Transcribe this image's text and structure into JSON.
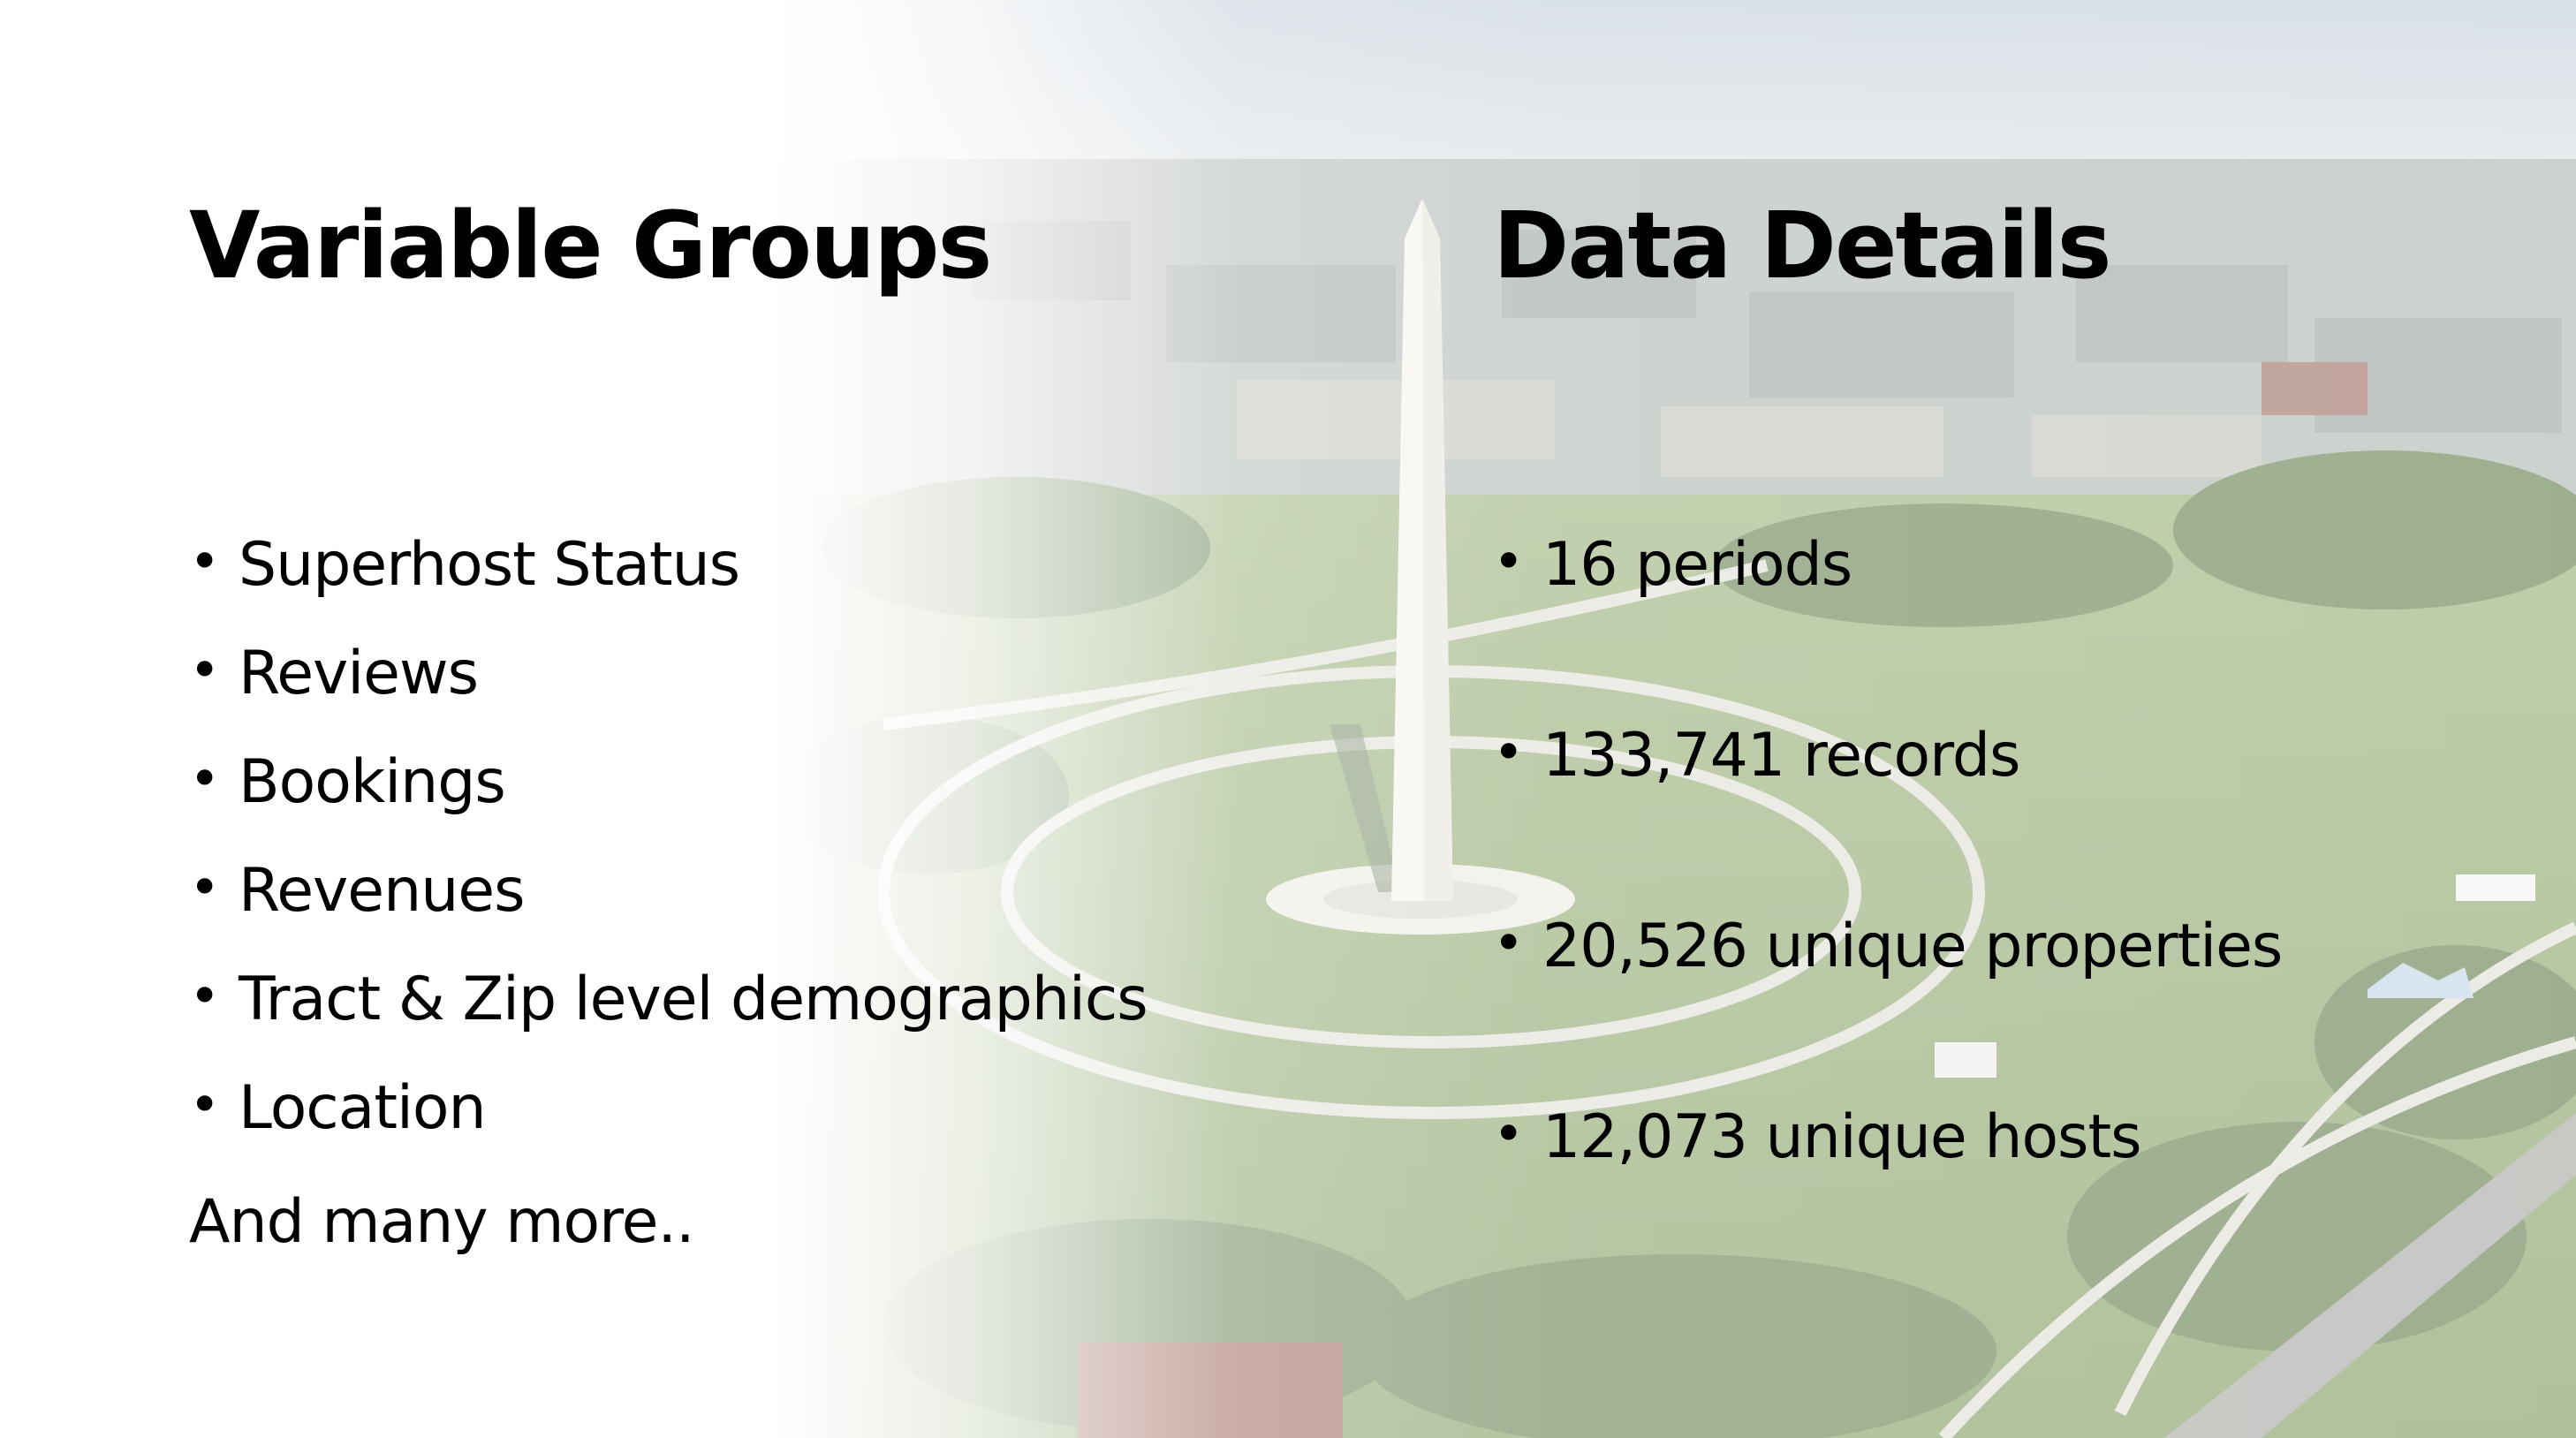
{
  "left_column": {
    "title": "Variable Groups",
    "items": [
      "Superhost Status",
      "Reviews",
      "Bookings",
      "Revenues",
      "Tract & Zip level demographics",
      "Location"
    ],
    "trailer": "And many more.."
  },
  "right_column": {
    "title": "Data Details",
    "items": [
      "16 periods",
      "133,741 records",
      "20,526 unique properties",
      "12,073 unique hosts"
    ]
  },
  "bullet_char": "•",
  "background": {
    "image": "aerial-view-washington-monument-national-mall",
    "colors": {
      "sky": "#c9d3dc",
      "city": "#9aa6a6",
      "grass": "#7e9a57",
      "trees": "#4f6e36",
      "path": "#d9d7cc",
      "monument": "#f4f1ea"
    }
  }
}
